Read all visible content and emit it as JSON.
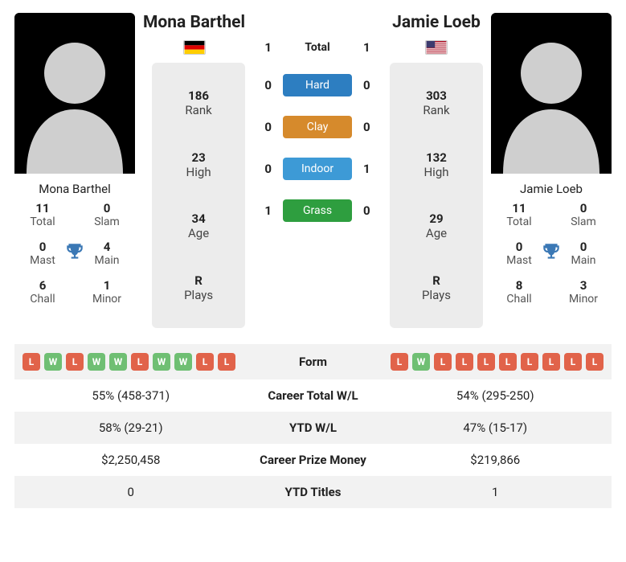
{
  "player1": {
    "name": "Mona Barthel",
    "flag_colors": [
      "#000000",
      "#dd0000",
      "#ffce00"
    ],
    "rank": "186",
    "rank_label": "Rank",
    "high": "23",
    "high_label": "High",
    "age": "34",
    "age_label": "Age",
    "plays": "R",
    "plays_label": "Plays",
    "titles": {
      "total": "11",
      "total_label": "Total",
      "slam": "0",
      "slam_label": "Slam",
      "mast": "0",
      "mast_label": "Mast",
      "main": "4",
      "main_label": "Main",
      "chall": "6",
      "chall_label": "Chall",
      "minor": "1",
      "minor_label": "Minor"
    }
  },
  "player2": {
    "name": "Jamie Loeb",
    "flag_colors_us": {
      "canton": "#3c3b6e",
      "stripe_red": "#b22234",
      "stripe_white": "#ffffff"
    },
    "rank": "303",
    "rank_label": "Rank",
    "high": "132",
    "high_label": "High",
    "age": "29",
    "age_label": "Age",
    "plays": "R",
    "plays_label": "Plays",
    "titles": {
      "total": "11",
      "total_label": "Total",
      "slam": "0",
      "slam_label": "Slam",
      "mast": "0",
      "mast_label": "Mast",
      "main": "0",
      "main_label": "Main",
      "chall": "8",
      "chall_label": "Chall",
      "minor": "3",
      "minor_label": "Minor"
    }
  },
  "h2h": {
    "total": {
      "label": "Total",
      "p1": "1",
      "p2": "1"
    },
    "surfaces": [
      {
        "label": "Hard",
        "color": "#2d7ec1",
        "p1": "0",
        "p2": "0"
      },
      {
        "label": "Clay",
        "color": "#d68a2c",
        "p1": "0",
        "p2": "0"
      },
      {
        "label": "Indoor",
        "color": "#3d9ad6",
        "p1": "0",
        "p2": "1"
      },
      {
        "label": "Grass",
        "color": "#2e9e3f",
        "p1": "1",
        "p2": "0"
      }
    ]
  },
  "form": {
    "label": "Form",
    "p1": [
      "L",
      "W",
      "L",
      "W",
      "W",
      "L",
      "W",
      "W",
      "L",
      "L"
    ],
    "p2": [
      "L",
      "W",
      "L",
      "L",
      "L",
      "L",
      "L",
      "L",
      "L",
      "L"
    ],
    "w_label": "W",
    "l_label": "L"
  },
  "rows": [
    {
      "label": "Career Total W/L",
      "p1": "55% (458-371)",
      "p2": "54% (295-250)"
    },
    {
      "label": "YTD W/L",
      "p1": "58% (29-21)",
      "p2": "47% (15-17)"
    },
    {
      "label": "Career Prize Money",
      "p1": "$2,250,458",
      "p2": "$219,866"
    },
    {
      "label": "YTD Titles",
      "p1": "0",
      "p2": "1"
    }
  ],
  "silhouette_color": "#cfcfcf",
  "trophy_color": "#3b78b5"
}
